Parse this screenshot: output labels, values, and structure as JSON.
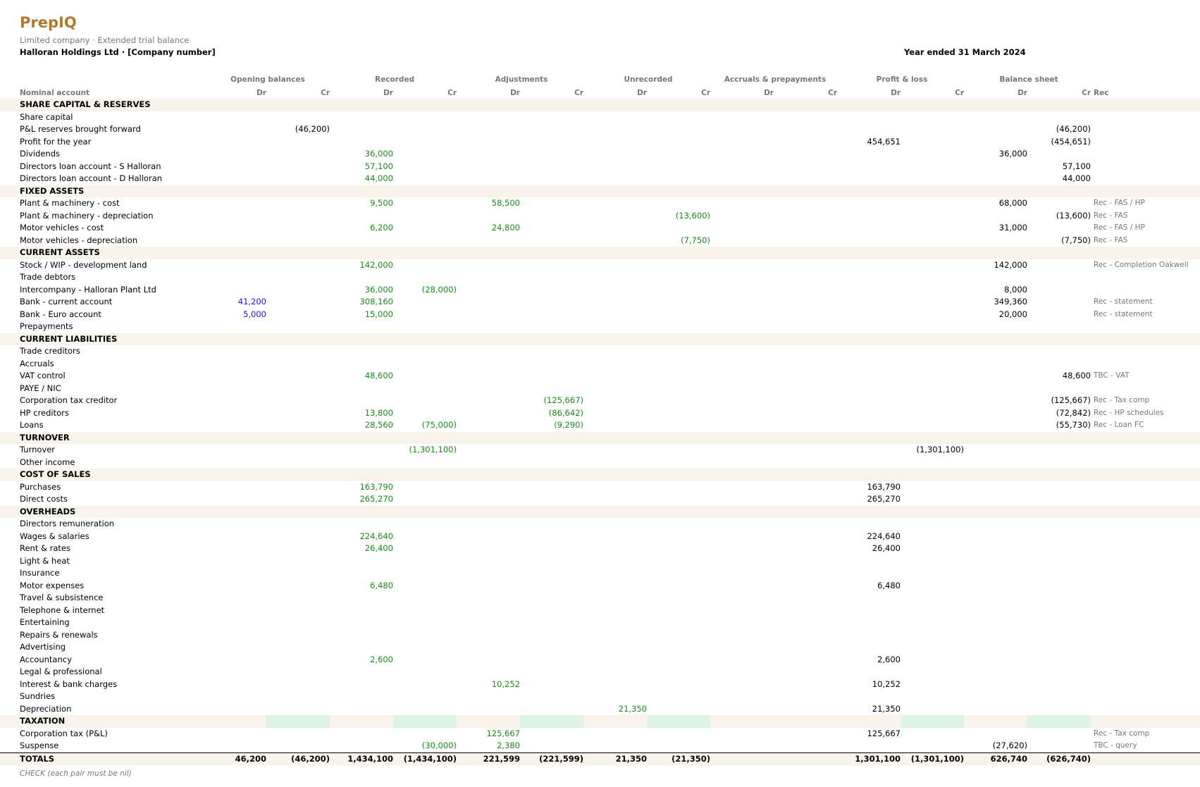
{
  "app": {
    "name": "PrepIQ"
  },
  "report": {
    "subtitle": "Limited company  ·  Extended trial balance",
    "company": "Halloran Holdings Ltd  ·  [Company number]",
    "period": "Year ended 31 March 2024",
    "check_note": "CHECK  (each pair must be nil)"
  },
  "columns": {
    "label_header": "Nominal account",
    "rec_header": "Rec",
    "groups": [
      "Opening balances",
      "Recorded",
      "Adjustments",
      "Unrecorded",
      "Accruals & prepayments",
      "Profit & loss",
      "Balance sheet"
    ],
    "dr": "Dr",
    "cr": "Cr"
  },
  "colors": {
    "brand": "#b07a2a",
    "section_bg": "#f8f4ec",
    "entry_green": "#1a8a1a",
    "opening_blue": "#1818d8",
    "check_shade": "#dff2e6"
  },
  "rows": [
    {
      "type": "section",
      "label": "SHARE CAPITAL & RESERVES"
    },
    {
      "type": "item",
      "label": "Share capital"
    },
    {
      "type": "item",
      "label": "P&L reserves brought forward",
      "values": {
        "ob_cr": {
          "v": "(46,200)",
          "c": "black"
        },
        "bs_cr": {
          "v": "(46,200)",
          "c": "black"
        }
      }
    },
    {
      "type": "item",
      "label": "Profit for the year",
      "values": {
        "pl_dr": {
          "v": "454,651",
          "c": "black"
        },
        "bs_cr": {
          "v": "(454,651)",
          "c": "black"
        }
      }
    },
    {
      "type": "item",
      "label": "Dividends",
      "values": {
        "rec_dr": {
          "v": "36,000",
          "c": "green"
        },
        "bs_dr": {
          "v": "36,000",
          "c": "black"
        }
      }
    },
    {
      "type": "item",
      "label": "Directors loan account - S Halloran",
      "values": {
        "rec_dr": {
          "v": "57,100",
          "c": "green"
        },
        "bs_cr": {
          "v": "57,100",
          "c": "black"
        }
      }
    },
    {
      "type": "item",
      "label": "Directors loan account - D Halloran",
      "values": {
        "rec_dr": {
          "v": "44,000",
          "c": "green"
        },
        "bs_cr": {
          "v": "44,000",
          "c": "black"
        }
      }
    },
    {
      "type": "section",
      "label": "FIXED ASSETS"
    },
    {
      "type": "item",
      "label": "Plant & machinery - cost",
      "values": {
        "rec_dr": {
          "v": "9,500",
          "c": "green"
        },
        "adj_dr": {
          "v": "58,500",
          "c": "green"
        },
        "bs_dr": {
          "v": "68,000",
          "c": "black"
        }
      },
      "rec": "Rec - FAS / HP"
    },
    {
      "type": "item",
      "label": "Plant & machinery - depreciation",
      "values": {
        "unr_cr": {
          "v": "(13,600)",
          "c": "green"
        },
        "bs_cr": {
          "v": "(13,600)",
          "c": "black"
        }
      },
      "rec": "Rec - FAS"
    },
    {
      "type": "item",
      "label": "Motor vehicles - cost",
      "values": {
        "rec_dr": {
          "v": "6,200",
          "c": "green"
        },
        "adj_dr": {
          "v": "24,800",
          "c": "green"
        },
        "bs_dr": {
          "v": "31,000",
          "c": "black"
        }
      },
      "rec": "Rec - FAS / HP"
    },
    {
      "type": "item",
      "label": "Motor vehicles - depreciation",
      "values": {
        "unr_cr": {
          "v": "(7,750)",
          "c": "green"
        },
        "bs_cr": {
          "v": "(7,750)",
          "c": "black"
        }
      },
      "rec": "Rec - FAS"
    },
    {
      "type": "section",
      "label": "CURRENT ASSETS"
    },
    {
      "type": "item",
      "label": "Stock / WIP - development land",
      "values": {
        "rec_dr": {
          "v": "142,000",
          "c": "green"
        },
        "bs_dr": {
          "v": "142,000",
          "c": "black"
        }
      },
      "rec": "Rec - Completion Oakwell"
    },
    {
      "type": "item",
      "label": "Trade debtors"
    },
    {
      "type": "item",
      "label": "Intercompany - Halloran Plant Ltd",
      "values": {
        "rec_dr": {
          "v": "36,000",
          "c": "green"
        },
        "rec_cr": {
          "v": "(28,000)",
          "c": "green"
        },
        "bs_dr": {
          "v": "8,000",
          "c": "black"
        }
      }
    },
    {
      "type": "item",
      "label": "Bank - current account",
      "values": {
        "ob_dr": {
          "v": "41,200",
          "c": "blue"
        },
        "rec_dr": {
          "v": "308,160",
          "c": "green"
        },
        "bs_dr": {
          "v": "349,360",
          "c": "black"
        }
      },
      "rec": "Rec - statement"
    },
    {
      "type": "item",
      "label": "Bank - Euro account",
      "values": {
        "ob_dr": {
          "v": "5,000",
          "c": "blue"
        },
        "rec_dr": {
          "v": "15,000",
          "c": "green"
        },
        "bs_dr": {
          "v": "20,000",
          "c": "black"
        }
      },
      "rec": "Rec - statement"
    },
    {
      "type": "item",
      "label": "Prepayments"
    },
    {
      "type": "section",
      "label": "CURRENT LIABILITIES"
    },
    {
      "type": "item",
      "label": "Trade creditors"
    },
    {
      "type": "item",
      "label": "Accruals"
    },
    {
      "type": "item",
      "label": "VAT control",
      "values": {
        "rec_dr": {
          "v": "48,600",
          "c": "green"
        },
        "bs_cr": {
          "v": "48,600",
          "c": "black"
        }
      },
      "rec": "TBC - VAT"
    },
    {
      "type": "item",
      "label": "PAYE / NIC"
    },
    {
      "type": "item",
      "label": "Corporation tax creditor",
      "values": {
        "adj_cr": {
          "v": "(125,667)",
          "c": "green"
        },
        "bs_cr": {
          "v": "(125,667)",
          "c": "black"
        }
      },
      "rec": "Rec - Tax comp"
    },
    {
      "type": "item",
      "label": "HP creditors",
      "values": {
        "rec_dr": {
          "v": "13,800",
          "c": "green"
        },
        "adj_cr": {
          "v": "(86,642)",
          "c": "green"
        },
        "bs_cr": {
          "v": "(72,842)",
          "c": "black"
        }
      },
      "rec": "Rec - HP schedules"
    },
    {
      "type": "item",
      "label": "Loans",
      "values": {
        "rec_dr": {
          "v": "28,560",
          "c": "green"
        },
        "rec_cr": {
          "v": "(75,000)",
          "c": "green"
        },
        "adj_cr": {
          "v": "(9,290)",
          "c": "green"
        },
        "bs_cr": {
          "v": "(55,730)",
          "c": "black"
        }
      },
      "rec": "Rec - Loan FC"
    },
    {
      "type": "section",
      "label": "TURNOVER"
    },
    {
      "type": "item",
      "label": "Turnover",
      "values": {
        "rec_cr": {
          "v": "(1,301,100)",
          "c": "green"
        },
        "pl_cr": {
          "v": "(1,301,100)",
          "c": "black"
        }
      }
    },
    {
      "type": "item",
      "label": "Other income"
    },
    {
      "type": "section",
      "label": "COST OF SALES"
    },
    {
      "type": "item",
      "label": "Purchases",
      "values": {
        "rec_dr": {
          "v": "163,790",
          "c": "green"
        },
        "pl_dr": {
          "v": "163,790",
          "c": "black"
        }
      }
    },
    {
      "type": "item",
      "label": "Direct costs",
      "values": {
        "rec_dr": {
          "v": "265,270",
          "c": "green"
        },
        "pl_dr": {
          "v": "265,270",
          "c": "black"
        }
      }
    },
    {
      "type": "section",
      "label": "OVERHEADS"
    },
    {
      "type": "item",
      "label": "Directors remuneration"
    },
    {
      "type": "item",
      "label": "Wages & salaries",
      "values": {
        "rec_dr": {
          "v": "224,640",
          "c": "green"
        },
        "pl_dr": {
          "v": "224,640",
          "c": "black"
        }
      }
    },
    {
      "type": "item",
      "label": "Rent & rates",
      "values": {
        "rec_dr": {
          "v": "26,400",
          "c": "green"
        },
        "pl_dr": {
          "v": "26,400",
          "c": "black"
        }
      }
    },
    {
      "type": "item",
      "label": "Light & heat"
    },
    {
      "type": "item",
      "label": "Insurance"
    },
    {
      "type": "item",
      "label": "Motor expenses",
      "values": {
        "rec_dr": {
          "v": "6,480",
          "c": "green"
        },
        "pl_dr": {
          "v": "6,480",
          "c": "black"
        }
      }
    },
    {
      "type": "item",
      "label": "Travel & subsistence"
    },
    {
      "type": "item",
      "label": "Telephone & internet"
    },
    {
      "type": "item",
      "label": "Entertaining"
    },
    {
      "type": "item",
      "label": "Repairs & renewals"
    },
    {
      "type": "item",
      "label": "Advertising"
    },
    {
      "type": "item",
      "label": "Accountancy",
      "values": {
        "rec_dr": {
          "v": "2,600",
          "c": "green"
        },
        "pl_dr": {
          "v": "2,600",
          "c": "black"
        }
      }
    },
    {
      "type": "item",
      "label": "Legal & professional"
    },
    {
      "type": "item",
      "label": "Interest & bank charges",
      "values": {
        "adj_dr": {
          "v": "10,252",
          "c": "green"
        },
        "pl_dr": {
          "v": "10,252",
          "c": "black"
        }
      }
    },
    {
      "type": "item",
      "label": "Sundries"
    },
    {
      "type": "item",
      "label": "Depreciation",
      "values": {
        "unr_dr": {
          "v": "21,350",
          "c": "green"
        },
        "pl_dr": {
          "v": "21,350",
          "c": "black"
        }
      }
    },
    {
      "type": "section",
      "label": "TAXATION",
      "shaded": [
        "ob_cr",
        "rec_cr",
        "adj_cr",
        "unr_cr",
        "pl_cr",
        "bs_cr"
      ]
    },
    {
      "type": "item",
      "label": "Corporation tax (P&L)",
      "values": {
        "adj_dr": {
          "v": "125,667",
          "c": "green"
        },
        "pl_dr": {
          "v": "125,667",
          "c": "black"
        }
      },
      "rec": "Rec - Tax comp"
    },
    {
      "type": "item",
      "label": "Suspense",
      "values": {
        "rec_cr": {
          "v": "(30,000)",
          "c": "green"
        },
        "adj_dr": {
          "v": "2,380",
          "c": "green"
        },
        "bs_dr": {
          "v": "(27,620)",
          "c": "black"
        }
      },
      "rec": "TBC - query"
    },
    {
      "type": "totals",
      "label": "TOTALS",
      "values": {
        "ob_dr": {
          "v": "46,200",
          "c": "black"
        },
        "ob_cr": {
          "v": "(46,200)",
          "c": "black"
        },
        "rec_dr": {
          "v": "1,434,100",
          "c": "black"
        },
        "rec_cr": {
          "v": "(1,434,100)",
          "c": "black"
        },
        "adj_dr": {
          "v": "221,599",
          "c": "black"
        },
        "adj_cr": {
          "v": "(221,599)",
          "c": "black"
        },
        "unr_dr": {
          "v": "21,350",
          "c": "black"
        },
        "unr_cr": {
          "v": "(21,350)",
          "c": "black"
        },
        "pl_dr": {
          "v": "1,301,100",
          "c": "black"
        },
        "pl_cr": {
          "v": "(1,301,100)",
          "c": "black"
        },
        "bs_dr": {
          "v": "626,740",
          "c": "black"
        },
        "bs_cr": {
          "v": "(626,740)",
          "c": "black"
        }
      }
    }
  ]
}
